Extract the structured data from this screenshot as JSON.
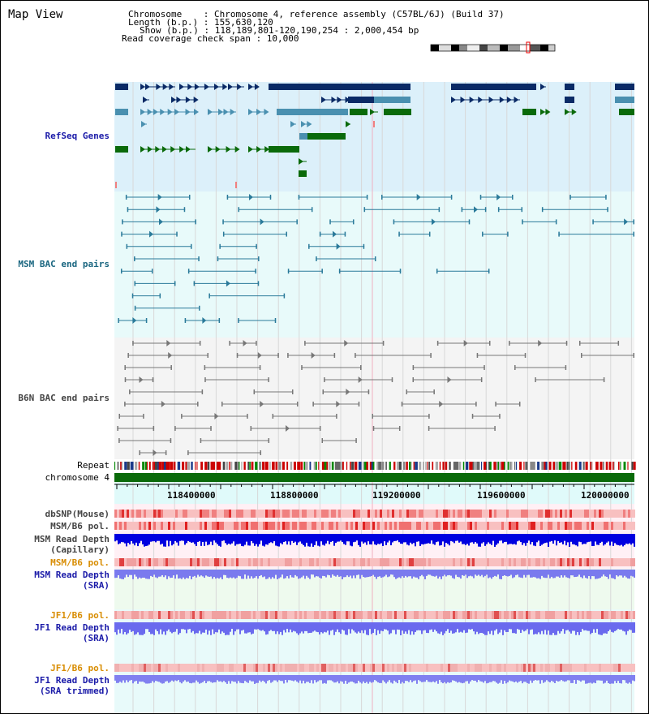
{
  "title": "Map View",
  "header": {
    "chromosome_line": "Chromosome    : Chromosome 4, reference assembly (C57BL/6J) (Build 37)",
    "length_line": "Length (b.p.) : 155,630,120",
    "show_line": "Show (b.p.) : 118,189,801-120,190,254 : 2,000,454 bp",
    "coverage_line": "Read coverage check span : 10,000"
  },
  "tracks": {
    "refseq": "RefSeq Genes",
    "msm_bac": "MSM BAC end pairs",
    "b6n_bac": "B6N BAC end pairs",
    "repeat": "Repeat",
    "chromosome": "chromosome 4",
    "dbsnp": "dbSNP(Mouse)",
    "msm_b6_pol_1": "MSM/B6 pol.",
    "msm_depth_cap_1": "MSM Read Depth",
    "msm_depth_cap_2": "(Capillary)",
    "msm_b6_pol_2": "MSM/B6 pol.",
    "msm_depth_sra_1": "MSM Read Depth",
    "msm_depth_sra_2": "(SRA)",
    "jf1_b6_pol_1": "JF1/B6 pol.",
    "jf1_depth_sra_1": "JF1 Read Depth",
    "jf1_depth_sra_2": "(SRA)",
    "jf1_b6_pol_2": "JF1/B6 pol.",
    "jf1_depth_trim_1": "JF1 Read Depth",
    "jf1_depth_trim_2": "(SRA trimmed)"
  },
  "axis": {
    "ticks": [
      "118400000",
      "118800000",
      "119200000",
      "119600000",
      "120000000"
    ]
  },
  "colors": {
    "refseq_bg": "#dcf0fa",
    "msm_bg": "#e8fafa",
    "b6n_bg": "#f4f4f4",
    "navy_gene": "#0a2a66",
    "teal_gene": "#4a90b0",
    "green_gene": "#0a6a0a",
    "chromosome": "#0a6a0a"
  }
}
